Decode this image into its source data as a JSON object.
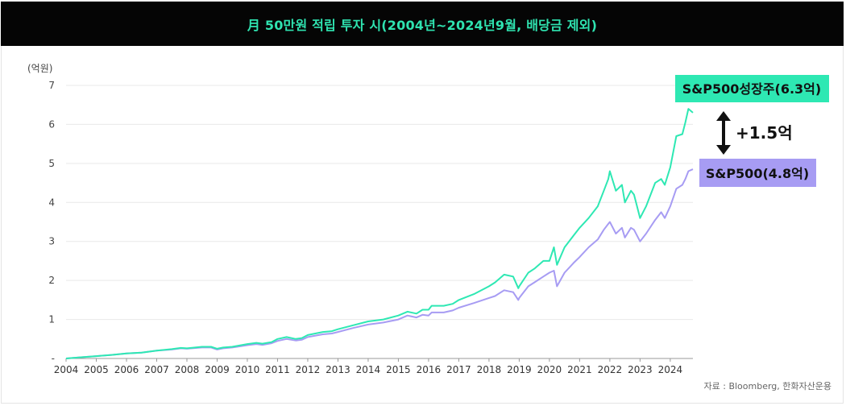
{
  "title": "月 50만원 적립 투자 시(2004년~2024년9월, 배당금 제외)",
  "unit_label": "(억원)",
  "source": "자료 : Bloomberg, 한화자산운용",
  "difference_label": "+1.5억",
  "colors": {
    "growth": "#2ee8b3",
    "sp500": "#a79cf3",
    "growth_box": "#2ee8b3",
    "sp500_box": "#a79cf3",
    "axis": "#999999",
    "grid": "#e9e9e9"
  },
  "chart_data": {
    "type": "line",
    "title": "月 50만원 적립 투자 시(2004년~2024년9월, 배당금 제외)",
    "ylabel": "(억원)",
    "ylim": [
      0,
      7
    ],
    "xlim": [
      2004,
      2024.75
    ],
    "yticks": [
      "-",
      "1",
      "2",
      "3",
      "4",
      "5",
      "6",
      "7"
    ],
    "xticks": [
      "2004",
      "2005",
      "2006",
      "2007",
      "2008",
      "2009",
      "2010",
      "2011",
      "2012",
      "2013",
      "2014",
      "2015",
      "2016",
      "2017",
      "2018",
      "2019",
      "2020",
      "2021",
      "2022",
      "2023",
      "2024"
    ],
    "grid": true,
    "series": [
      {
        "name": "S&P500성장주(6.3억)",
        "label": "S&P500성장주(6.3억)",
        "x": [
          2004,
          2004.5,
          2005,
          2005.5,
          2006,
          2006.5,
          2007,
          2007.5,
          2007.8,
          2008,
          2008.5,
          2008.8,
          2009,
          2009.2,
          2009.5,
          2010,
          2010.3,
          2010.5,
          2010.8,
          2011,
          2011.3,
          2011.6,
          2011.8,
          2012,
          2012.5,
          2012.8,
          2013,
          2013.5,
          2014,
          2014.5,
          2015,
          2015.3,
          2015.6,
          2015.8,
          2016,
          2016.1,
          2016.5,
          2016.8,
          2017,
          2017.5,
          2018,
          2018.2,
          2018.5,
          2018.8,
          2018.97,
          2019,
          2019.3,
          2019.5,
          2019.8,
          2020,
          2020.15,
          2020.25,
          2020.5,
          2020.8,
          2021,
          2021.3,
          2021.6,
          2021.8,
          2021.95,
          2022,
          2022.2,
          2022.4,
          2022.5,
          2022.7,
          2022.8,
          2023,
          2023.2,
          2023.5,
          2023.7,
          2023.82,
          2024,
          2024.2,
          2024.4,
          2024.5,
          2024.6,
          2024.75
        ],
        "y": [
          0.0,
          0.03,
          0.06,
          0.09,
          0.13,
          0.15,
          0.2,
          0.24,
          0.27,
          0.26,
          0.3,
          0.3,
          0.25,
          0.28,
          0.3,
          0.37,
          0.4,
          0.38,
          0.42,
          0.5,
          0.55,
          0.5,
          0.52,
          0.6,
          0.68,
          0.7,
          0.75,
          0.85,
          0.95,
          1.0,
          1.1,
          1.2,
          1.15,
          1.25,
          1.25,
          1.35,
          1.35,
          1.4,
          1.5,
          1.65,
          1.85,
          1.95,
          2.15,
          2.1,
          1.8,
          1.85,
          2.2,
          2.3,
          2.5,
          2.5,
          2.85,
          2.4,
          2.85,
          3.15,
          3.35,
          3.6,
          3.9,
          4.3,
          4.6,
          4.8,
          4.3,
          4.45,
          4.0,
          4.3,
          4.2,
          3.6,
          3.9,
          4.5,
          4.6,
          4.45,
          4.9,
          5.7,
          5.75,
          6.05,
          6.4,
          6.3
        ]
      },
      {
        "name": "S&P500(4.8억)",
        "label": "S&P500(4.8억)",
        "x": [
          2004,
          2004.5,
          2005,
          2005.5,
          2006,
          2006.5,
          2007,
          2007.5,
          2007.8,
          2008,
          2008.5,
          2008.8,
          2009,
          2009.2,
          2009.5,
          2010,
          2010.3,
          2010.5,
          2010.8,
          2011,
          2011.3,
          2011.6,
          2011.8,
          2012,
          2012.5,
          2012.8,
          2013,
          2013.5,
          2014,
          2014.5,
          2015,
          2015.3,
          2015.6,
          2015.8,
          2016,
          2016.1,
          2016.5,
          2016.8,
          2017,
          2017.5,
          2018,
          2018.2,
          2018.5,
          2018.8,
          2018.97,
          2019,
          2019.3,
          2019.5,
          2019.8,
          2020,
          2020.15,
          2020.25,
          2020.5,
          2020.8,
          2021,
          2021.3,
          2021.6,
          2021.8,
          2021.95,
          2022,
          2022.2,
          2022.4,
          2022.5,
          2022.7,
          2022.8,
          2023,
          2023.2,
          2023.5,
          2023.7,
          2023.82,
          2024,
          2024.2,
          2024.4,
          2024.5,
          2024.6,
          2024.75
        ],
        "y": [
          0.0,
          0.03,
          0.06,
          0.09,
          0.13,
          0.15,
          0.2,
          0.23,
          0.26,
          0.25,
          0.28,
          0.28,
          0.23,
          0.26,
          0.28,
          0.34,
          0.37,
          0.35,
          0.39,
          0.45,
          0.5,
          0.46,
          0.48,
          0.55,
          0.62,
          0.64,
          0.68,
          0.78,
          0.87,
          0.92,
          1.0,
          1.1,
          1.05,
          1.12,
          1.1,
          1.18,
          1.18,
          1.23,
          1.3,
          1.42,
          1.55,
          1.6,
          1.75,
          1.7,
          1.5,
          1.55,
          1.85,
          1.95,
          2.1,
          2.2,
          2.25,
          1.85,
          2.2,
          2.45,
          2.6,
          2.85,
          3.05,
          3.3,
          3.45,
          3.5,
          3.2,
          3.35,
          3.1,
          3.35,
          3.3,
          3.0,
          3.2,
          3.55,
          3.75,
          3.6,
          3.9,
          4.35,
          4.45,
          4.6,
          4.8,
          4.85
        ]
      }
    ]
  }
}
